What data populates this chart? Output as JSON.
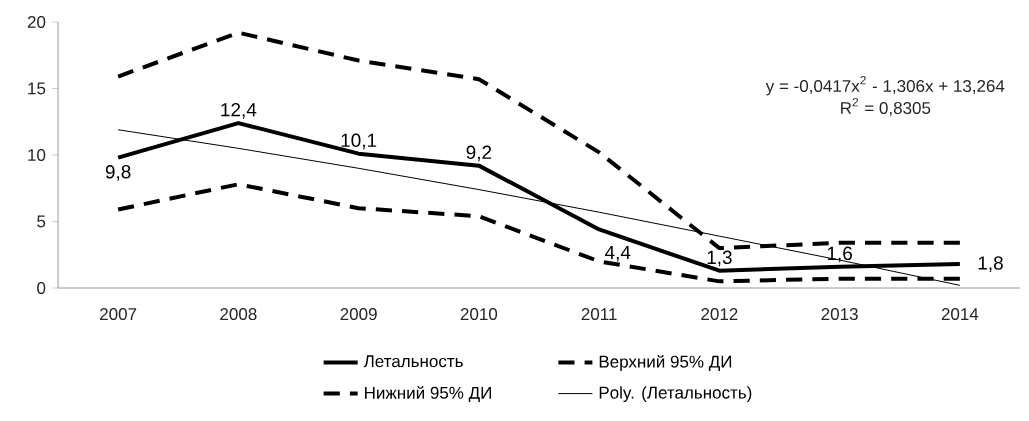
{
  "chart_data": {
    "type": "line",
    "categories": [
      "2007",
      "2008",
      "2009",
      "2010",
      "2011",
      "2012",
      "2013",
      "2014"
    ],
    "series": [
      {
        "name": "Летальность",
        "color": "#000000",
        "line_style": "solid",
        "values": [
          9.8,
          12.4,
          10.1,
          9.2,
          4.4,
          1.3,
          1.6,
          1.8
        ],
        "value_labels": [
          "9,8",
          "12,4",
          "10,1",
          "9,2",
          "4,4",
          "1,3",
          "1,6",
          "1,8"
        ]
      },
      {
        "name": "Верхний 95% ДИ",
        "color": "#000000",
        "line_style": "dashed",
        "values": [
          15.9,
          19.2,
          17.1,
          15.7,
          10.2,
          3.0,
          3.4,
          3.4
        ]
      },
      {
        "name": "Нижний 95% ДИ",
        "color": "#000000",
        "line_style": "dashed",
        "values": [
          5.9,
          7.8,
          6.0,
          5.4,
          2.0,
          0.5,
          0.7,
          0.7
        ]
      },
      {
        "name": "Poly. (Летальность)",
        "type": "line",
        "color": "#000000",
        "line_style": "solid",
        "values": [
          11.9,
          10.5,
          9.0,
          7.4,
          5.7,
          3.9,
          2.1,
          0.2
        ]
      }
    ],
    "ylim": [
      0,
      20
    ],
    "yticks": [
      0,
      5,
      10,
      15,
      20
    ],
    "annotations": [
      "y = -0,0417x$^{2}$ - 1,306x + 13,264",
      "R$^{2}$ = 0,8305"
    ],
    "legend": "bottom",
    "grid": false,
    "marker": "none"
  }
}
